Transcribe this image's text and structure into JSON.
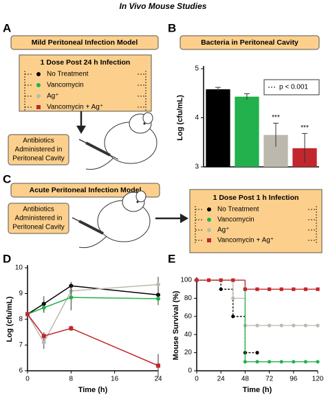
{
  "title": "In Vivo Mouse Studies",
  "panel_labels": [
    "A",
    "B",
    "C",
    "D",
    "E"
  ],
  "diagrams": {
    "panel_a": {
      "model": "Mild Peritoneal Infection Model",
      "dose": "1 Dose Post 24 h Infection",
      "legend": [
        {
          "label": "No Treatment",
          "color": "#000000",
          "marker": "circle"
        },
        {
          "label": "Vancomycin",
          "color": "#22b14c",
          "marker": "circle"
        },
        {
          "label": "Ag⁺",
          "color": "#bdb8ad",
          "marker": "circle"
        },
        {
          "label": "Vancomycin + Ag⁺",
          "color": "#c1272d",
          "marker": "square"
        }
      ],
      "administration": [
        "Antibiotics",
        "Administered in",
        "Peritoneal Cavity"
      ]
    },
    "panel_c": {
      "model": "Acute Peritoneal Infection Model",
      "dose": "1 Dose Post 1 h Infection",
      "legend": [
        {
          "label": "No Treatment",
          "color": "#000000",
          "marker": "circle"
        },
        {
          "label": "Vancomycin",
          "color": "#22b14c",
          "marker": "circle"
        },
        {
          "label": "Ag⁺",
          "color": "#bdb8ad",
          "marker": "circle"
        },
        {
          "label": "Vancomycin + Ag⁺",
          "color": "#c1272d",
          "marker": "square"
        }
      ],
      "administration": [
        "Antibiotics",
        "Administered in",
        "Peritoneal Cavity"
      ]
    }
  },
  "chart_data": [
    {
      "type": "bar",
      "title": "Bacteria in Peritoneal Cavity",
      "y_label": "Log (cfu/mL)",
      "categories": [
        null,
        null,
        null,
        null
      ],
      "values": [
        4.58,
        4.43,
        3.65,
        3.38
      ],
      "errors": [
        0.04,
        0.06,
        0.24,
        0.3
      ],
      "colors": [
        "#000000",
        "#22b14c",
        "#bdb8ad",
        "#c1272d"
      ],
      "significance": [
        null,
        null,
        "***",
        "***"
      ],
      "legend": "p < 0.001",
      "ylim": [
        3,
        5
      ],
      "yticks": [
        3,
        4,
        5
      ]
    },
    {
      "type": "line",
      "x_label": "Time (h)",
      "y_label": "Log (cfu/mL)",
      "x": [
        0,
        3,
        8,
        24
      ],
      "xlim": [
        0,
        24
      ],
      "xticks": [
        0,
        8,
        16,
        24
      ],
      "ylim": [
        6,
        10
      ],
      "yticks": [
        6,
        7,
        8,
        9,
        10
      ],
      "series": [
        {
          "color": "#000000",
          "marker": "circle",
          "values": [
            8.2,
            8.6,
            9.3,
            8.95
          ],
          "errors": [
            0.1,
            0.3,
            0.15,
            0.25
          ]
        },
        {
          "color": "#bdb8ad",
          "marker": "circle",
          "values": [
            8.2,
            7.1,
            9.1,
            9.35
          ],
          "errors": [
            0.1,
            0.25,
            0.2,
            0.3
          ]
        },
        {
          "color": "#22b14c",
          "marker": "circle",
          "values": [
            8.2,
            8.45,
            8.85,
            8.8
          ],
          "errors": [
            0.1,
            0.2,
            0.5,
            0.25
          ]
        },
        {
          "color": "#c1272d",
          "marker": "square",
          "values": [
            8.2,
            7.35,
            7.65,
            6.2
          ],
          "errors": [
            0.1,
            0.15,
            0.1,
            0.45
          ]
        }
      ]
    },
    {
      "type": "step",
      "x_label": "Time (h)",
      "y_label": "Mouse Survival (%)",
      "x": [
        0,
        12,
        24,
        36,
        48,
        60,
        72,
        84,
        96,
        108,
        120
      ],
      "xlim": [
        0,
        120
      ],
      "xticks": [
        0,
        24,
        48,
        72,
        96,
        120
      ],
      "ylim": [
        0,
        100
      ],
      "yticks": [
        0,
        20,
        40,
        60,
        80,
        100
      ],
      "series": [
        {
          "color": "#000000",
          "marker": "circle",
          "dashed": true,
          "values": [
            100,
            100,
            90,
            60,
            20,
            20,
            null,
            null,
            null,
            null,
            null
          ]
        },
        {
          "color": "#bdb8ad",
          "marker": "circle",
          "dashed": false,
          "values": [
            100,
            100,
            100,
            80,
            50,
            50,
            50,
            50,
            50,
            50,
            50
          ]
        },
        {
          "color": "#22b14c",
          "marker": "circle",
          "dashed": false,
          "values": [
            100,
            100,
            100,
            100,
            10,
            10,
            10,
            10,
            10,
            10,
            10
          ]
        },
        {
          "color": "#c1272d",
          "marker": "square",
          "dashed": false,
          "values": [
            100,
            100,
            100,
            100,
            90,
            90,
            90,
            90,
            90,
            90,
            90
          ]
        }
      ]
    }
  ]
}
